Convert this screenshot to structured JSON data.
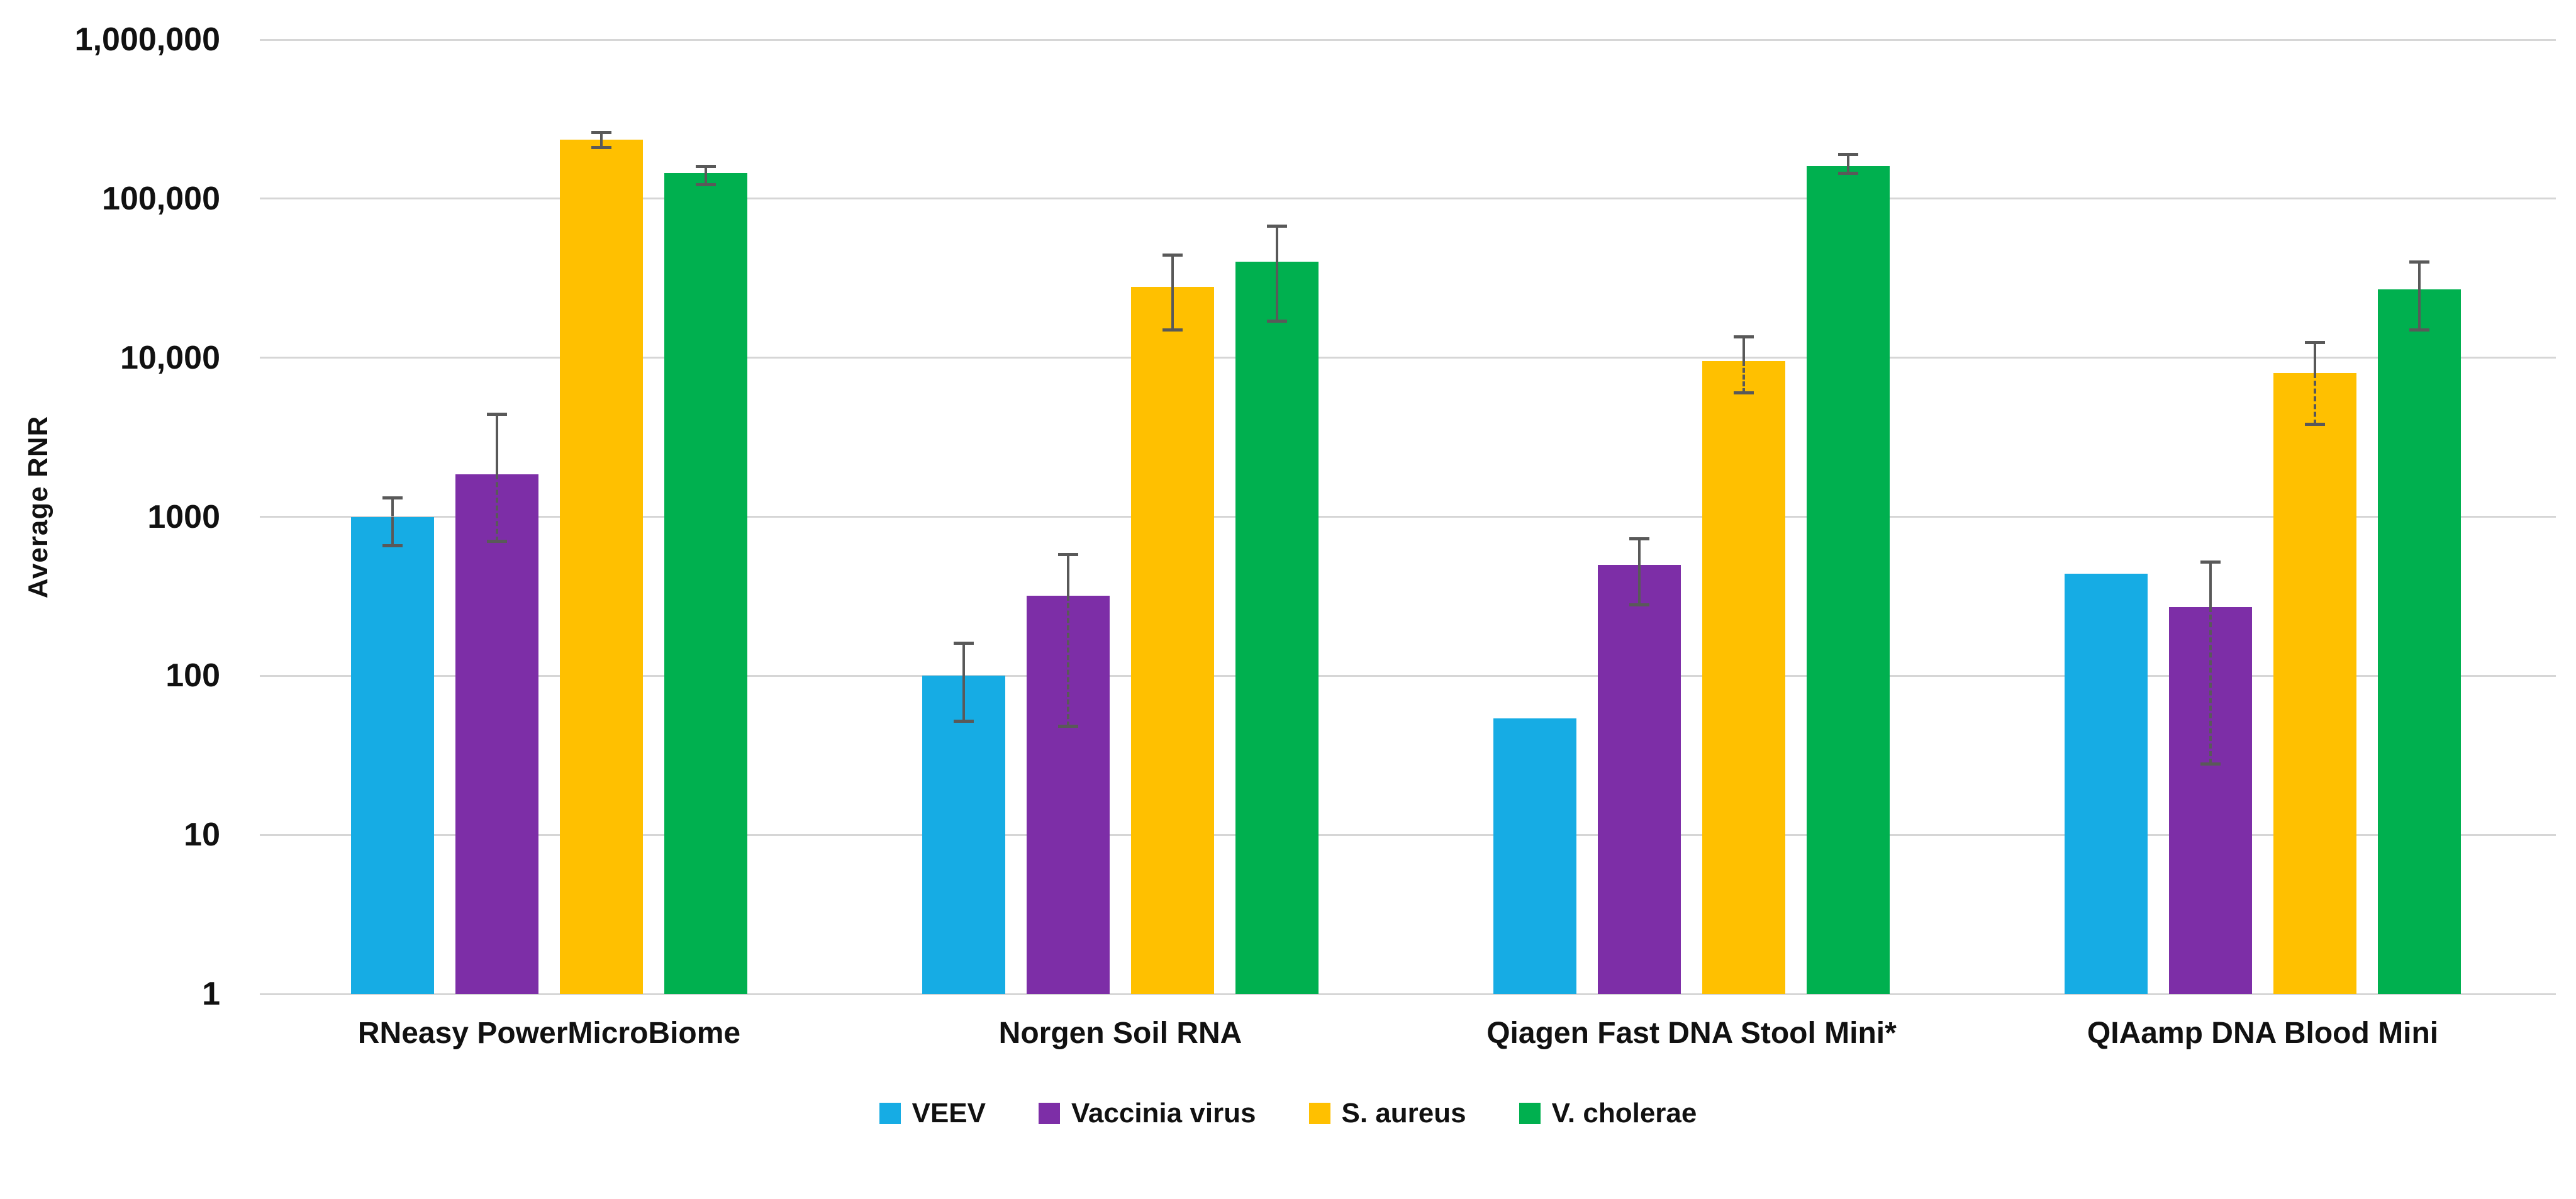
{
  "chart_data": {
    "type": "bar",
    "title": "",
    "ylabel": "Average RNR",
    "xlabel": "",
    "scale": "log10",
    "ylim": [
      1,
      1000000
    ],
    "grid": true,
    "legend_position": "bottom",
    "y_ticks": [
      {
        "label": "1,000,000",
        "value": 1000000
      },
      {
        "label": "100,000",
        "value": 100000
      },
      {
        "label": "10,000",
        "value": 10000
      },
      {
        "label": "1000",
        "value": 1000
      },
      {
        "label": "100",
        "value": 100
      },
      {
        "label": "10",
        "value": 10
      },
      {
        "label": "1",
        "value": 1
      }
    ],
    "categories": [
      "RNeasy PowerMicroBiome",
      "Norgen Soil RNA",
      "Qiagen Fast DNA Stool Mini*",
      "QIAamp DNA Blood Mini"
    ],
    "series": [
      {
        "name": "VEEV",
        "color": "#16ACE4",
        "values": [
          1000,
          100,
          54,
          440
        ],
        "errors": [
          {
            "low": 660,
            "high": 1320
          },
          {
            "low": 52,
            "high": 160
          },
          null,
          null
        ]
      },
      {
        "name": "Vaccinia virus",
        "color": "#7D2EA7",
        "values": [
          1850,
          320,
          500,
          270
        ],
        "errors": [
          {
            "low": 700,
            "high": 4400,
            "dashed_lower": true
          },
          {
            "low": 48,
            "high": 580,
            "dashed_lower": true
          },
          {
            "low": 280,
            "high": 730
          },
          {
            "low": 28,
            "high": 520,
            "dashed_lower": true
          }
        ]
      },
      {
        "name": "S. aureus",
        "color": "#FFC000",
        "values": [
          235000,
          28000,
          9500,
          8000
        ],
        "errors": [
          {
            "low": 210000,
            "high": 262000
          },
          {
            "low": 15000,
            "high": 44000
          },
          {
            "low": 6000,
            "high": 13500,
            "dashed_lower": true
          },
          {
            "low": 3800,
            "high": 12500,
            "dashed_lower": true
          }
        ]
      },
      {
        "name": "V. cholerae",
        "color": "#00B04F",
        "values": [
          145000,
          40000,
          160000,
          27000
        ],
        "errors": [
          {
            "low": 123000,
            "high": 160000
          },
          {
            "low": 17000,
            "high": 67000
          },
          {
            "low": 145000,
            "high": 190000
          },
          {
            "low": 15000,
            "high": 40000
          }
        ]
      }
    ]
  }
}
